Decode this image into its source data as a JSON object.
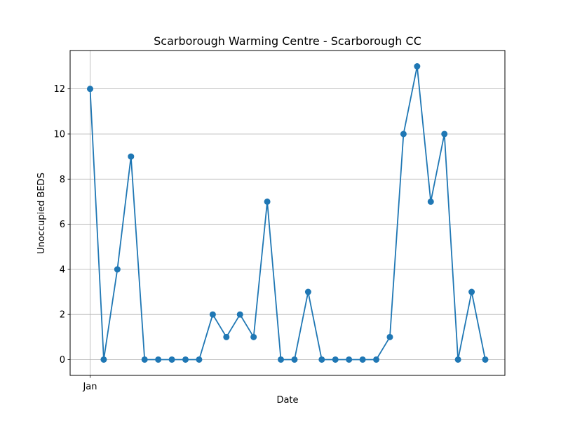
{
  "chart_data": {
    "type": "line",
    "title": "Scarborough Warming Centre - Scarborough CC",
    "xlabel": "Date",
    "ylabel": "Unoccupied BEDS",
    "x_tick_labels": [
      "Jan"
    ],
    "x": [
      "Jan 1",
      "Jan 2",
      "Jan 3",
      "Jan 4",
      "Jan 5",
      "Jan 6",
      "Jan 7",
      "Jan 8",
      "Jan 9",
      "Jan 10",
      "Jan 11",
      "Jan 12",
      "Jan 13",
      "Jan 14",
      "Jan 15",
      "Jan 16",
      "Jan 17",
      "Jan 18",
      "Jan 19",
      "Jan 20",
      "Jan 21",
      "Jan 22",
      "Jan 23",
      "Jan 24",
      "Jan 25",
      "Jan 26",
      "Jan 27",
      "Jan 28",
      "Jan 29",
      "Jan 30"
    ],
    "series": [
      {
        "values": [
          12,
          0,
          4,
          9,
          0,
          0,
          0,
          0,
          0,
          2,
          1,
          2,
          1,
          7,
          0,
          0,
          3,
          0,
          0,
          0,
          0,
          0,
          1,
          10,
          13,
          7,
          10,
          0,
          3,
          0
        ]
      }
    ],
    "ylim": [
      -0.7,
      13.7
    ],
    "yticks": [
      0,
      2,
      4,
      6,
      8,
      10,
      12
    ],
    "grid": true,
    "color": "#1f77b4"
  }
}
